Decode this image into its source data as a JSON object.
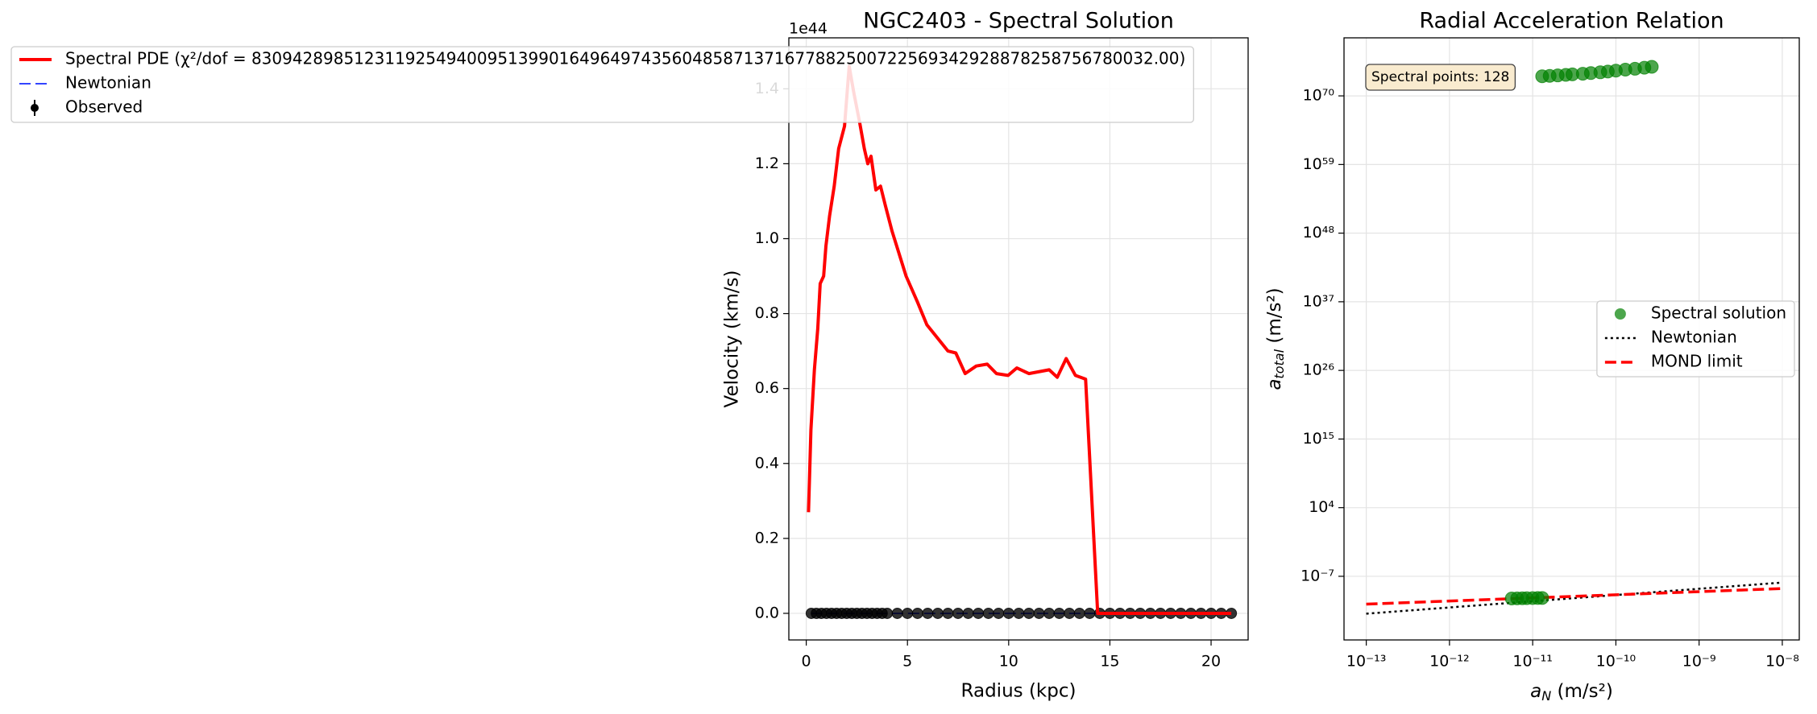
{
  "chart_data": [
    {
      "type": "line",
      "title": "NGC2403 - Spectral Solution",
      "offset_label": "1e44",
      "x_label": "Radius (kpc)",
      "y_label": "Velocity (km/s)",
      "xlim": [
        -0.86,
        21.83
      ],
      "ylim": [
        -0.071,
        1.536
      ],
      "xticks": [
        0,
        5,
        10,
        15,
        20
      ],
      "yticks": [
        {
          "value": 0,
          "label": "0.0"
        },
        0.2,
        0.4,
        0.6,
        0.8,
        {
          "value": 1,
          "label": "1.0"
        },
        1.2,
        1.4
      ],
      "grid": true,
      "legend": "upper left",
      "series": [
        {
          "name": "Spectral PDE (χ²/dof = 8309428985123119254940095139901649649743560485871371677882500722569342928878258756780032.00)",
          "color": "#ff0000",
          "style": "solid",
          "x": [
            0.11,
            0.23,
            0.4,
            0.57,
            0.69,
            0.86,
            0.97,
            1.15,
            1.38,
            1.6,
            1.89,
            2.12,
            2.35,
            2.64,
            2.87,
            3.04,
            3.2,
            3.44,
            3.67,
            3.9,
            4.24,
            4.93,
            5.5,
            5.96,
            7.0,
            7.39,
            7.85,
            8.4,
            8.94,
            9.4,
            9.97,
            10.4,
            11.0,
            12.0,
            12.4,
            12.84,
            13.3,
            13.8,
            14.4,
            21.0
          ],
          "values": [
            0.27,
            0.49,
            0.65,
            0.76,
            0.88,
            0.9,
            0.98,
            1.06,
            1.14,
            1.24,
            1.3,
            1.46,
            1.39,
            1.31,
            1.24,
            1.2,
            1.22,
            1.13,
            1.14,
            1.09,
            1.02,
            0.9,
            0.83,
            0.77,
            0.7,
            0.695,
            0.64,
            0.66,
            0.665,
            0.64,
            0.635,
            0.655,
            0.64,
            0.65,
            0.63,
            0.68,
            0.635,
            0.625,
            0,
            0
          ]
        },
        {
          "name": "Newtonian",
          "color": "#3344ff",
          "style": "dashed",
          "x": [
            0.25,
            21.0
          ],
          "values": [
            0,
            0
          ]
        },
        {
          "name": "Observed",
          "color": "#000000",
          "style": "errorbar",
          "x": [
            0.25,
            0.5,
            0.75,
            1.0,
            1.25,
            1.5,
            1.75,
            2.0,
            2.25,
            2.5,
            2.75,
            3.0,
            3.25,
            3.5,
            3.75,
            4.0,
            4.5,
            5.0,
            5.5,
            6.0,
            6.5,
            7.0,
            7.5,
            8.0,
            8.5,
            9.0,
            9.5,
            10.0,
            10.5,
            11.0,
            11.5,
            12.0,
            12.5,
            13.0,
            13.5,
            14.0,
            14.5,
            15.0,
            15.5,
            16.0,
            16.5,
            17.0,
            17.5,
            18.0,
            18.5,
            19.0,
            19.5,
            20.0,
            20.5,
            21.0
          ],
          "values": [
            0,
            0,
            0,
            0,
            0,
            0,
            0,
            0,
            0,
            0,
            0,
            0,
            0,
            0,
            0,
            0,
            0,
            0,
            0,
            0,
            0,
            0,
            0,
            0,
            0,
            0,
            0,
            0,
            0,
            0,
            0,
            0,
            0,
            0,
            0,
            0,
            0,
            0,
            0,
            0,
            0,
            0,
            0,
            0,
            0,
            0,
            0,
            0,
            0,
            0
          ]
        }
      ]
    },
    {
      "type": "scatter",
      "title": "Radial Acceleration Relation",
      "annotation": "Spectral points: 128",
      "x_label": {
        "symbol": "a",
        "subscript": "N",
        "unit": " (m/s²)"
      },
      "y_label": {
        "symbol": "a",
        "subscript": "total",
        "unit": " (m/s²)"
      },
      "xscale": "log",
      "yscale": "log",
      "xlim": [
        5.4e-14,
        1.6e-08
      ],
      "ylim": [
        6.3e-18,
        2e+79
      ],
      "xticks": [
        {
          "value": 1e-13,
          "label": "10⁻¹³"
        },
        {
          "value": 1e-12,
          "label": "10⁻¹²"
        },
        {
          "value": 1e-11,
          "label": "10⁻¹¹"
        },
        {
          "value": 1e-10,
          "label": "10⁻¹⁰"
        },
        {
          "value": 1e-09,
          "label": "10⁻⁹"
        },
        {
          "value": 1e-08,
          "label": "10⁻⁸"
        }
      ],
      "yticks": [
        {
          "value": 1e-07,
          "label": "10⁻⁷"
        },
        {
          "value": 10000.0,
          "label": "10⁴"
        },
        {
          "value": 1000000000000000.0,
          "label": "10¹⁵"
        },
        {
          "value": 1e+26,
          "label": "10²⁶"
        },
        {
          "value": 1e+37,
          "label": "10³⁷"
        },
        {
          "value": 1e+48,
          "label": "10⁴⁸"
        },
        {
          "value": 1e+59,
          "label": "10⁵⁹"
        },
        {
          "value": 1e+70,
          "label": "10⁷⁰"
        }
      ],
      "grid": true,
      "legend": "center right",
      "series": [
        {
          "name": "Spectral solution",
          "color": "#008000",
          "style": "marker",
          "x": [
            1.3e-11,
            1.6e-11,
            2e-11,
            2.5e-11,
            3e-11,
            4e-11,
            5e-11,
            6.5e-11,
            8e-11,
            1e-10,
            1.3e-10,
            1.7e-10,
            2.2e-10,
            2.7e-10,
            5.6e-12,
            6.5e-12,
            7.5e-12,
            8.5e-12,
            1e-11,
            1.15e-11,
            1.3e-11
          ],
          "values": [
            1.4e+73,
            1.6e+73,
            1.9e+73,
            2.3e+73,
            2.8e+73,
            3.5e+73,
            4.5e+73,
            6e+73,
            8e+73,
            1.1e+74,
            1.6e+74,
            2.2e+74,
            3.2e+74,
            4.5e+74,
            2.8e-11,
            2.9e-11,
            3e-11,
            3.1e-11,
            3.2e-11,
            3.3e-11,
            3.4e-11
          ]
        },
        {
          "name": "Newtonian",
          "color": "#000000",
          "style": "dotted",
          "x": [
            1e-13,
            1e-08
          ],
          "values": [
            1e-13,
            1e-08
          ]
        },
        {
          "name": "MOND limit",
          "color": "#ff0000",
          "style": "dashed",
          "x": [
            1e-13,
            1e-08
          ],
          "values": [
            3.5e-12,
            1.1e-09
          ]
        }
      ]
    }
  ]
}
